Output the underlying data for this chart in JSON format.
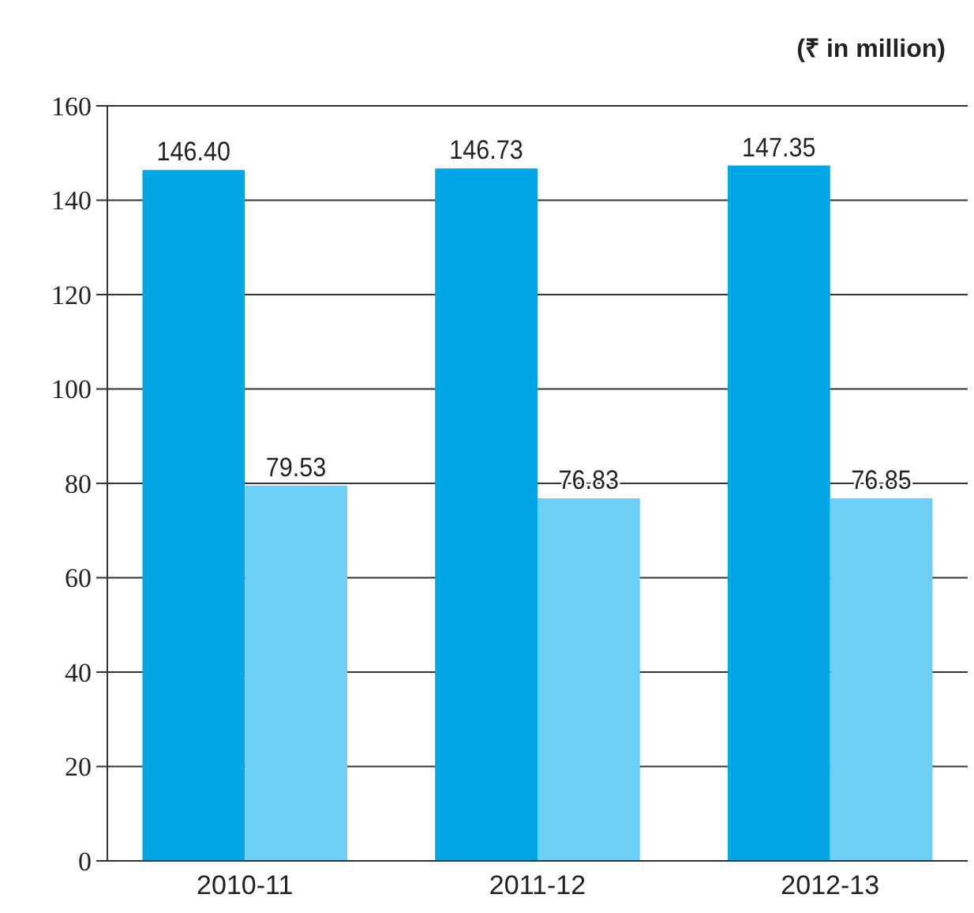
{
  "chart_data": {
    "type": "bar",
    "title": "(₹ in million)",
    "categories": [
      "2010-11",
      "2011-12",
      "2012-13"
    ],
    "series": [
      {
        "color": "#00a6e6",
        "values": [
          146.4,
          146.73,
          147.35
        ],
        "value_labels": [
          "146.40",
          "146.73",
          "147.35"
        ]
      },
      {
        "color": "#6dcff6",
        "values": [
          79.53,
          76.83,
          76.85
        ],
        "value_labels": [
          "79.53",
          "76.83",
          "76.85"
        ]
      }
    ],
    "ylim": [
      0,
      160
    ],
    "yticks": [
      0,
      20,
      40,
      60,
      80,
      100,
      120,
      140,
      160
    ],
    "grid": "y"
  }
}
